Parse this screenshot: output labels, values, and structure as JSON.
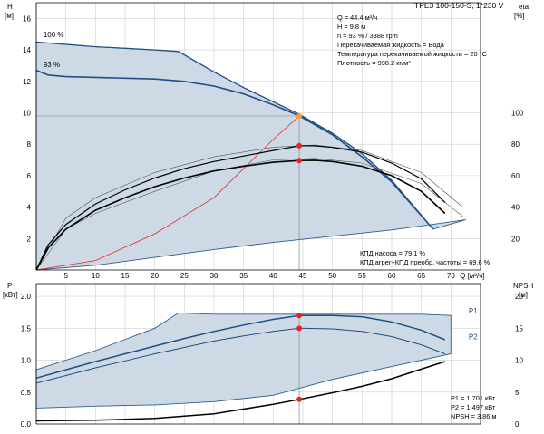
{
  "pump_title": "TPE3 100-150-S, 1*230 V",
  "info": [
    "Q = 44.4 м³/ч",
    "H = 9.8 м",
    "n = 93 % / 3388 rpm",
    "Перекачиваемая жидкость = Вода",
    "Температура перекачиваемой жидкости = 20 °C",
    "Плотность = 998.2 кг/м³"
  ],
  "efficiency_notes": [
    "КПД насоса = 79.1 %",
    "КПД агрег+КПД преобр. частоты = 69.6 %"
  ],
  "power_notes": [
    "P1 = 1.701 кВт",
    "P2 = 1.497 кВт",
    "NPSH = 3.86 м"
  ],
  "colors": {
    "area_fill": "#cddae6",
    "area_edge": "#2d5d8c",
    "head_curve": "#1f4f85",
    "eff_curve": "#000000",
    "system_curve": "#e8241c",
    "duty_point": "#e8241c",
    "duty_point_top": "#f5a31a",
    "grid": "#cfcfcf"
  },
  "chart_data": [
    {
      "type": "line",
      "title": "",
      "xlabel": "Q [м³/ч]",
      "ylabel": "H [м]",
      "y2label": "eta [%]",
      "xlim": [
        0,
        75
      ],
      "ylim": [
        0,
        17
      ],
      "y2lim": [
        0,
        170
      ],
      "x_ticks": [
        5,
        10,
        15,
        20,
        25,
        30,
        35,
        40,
        45,
        50,
        55,
        60,
        65,
        70
      ],
      "y_ticks": [
        2,
        4,
        6,
        8,
        10,
        12,
        14,
        16
      ],
      "y2_ticks": [
        20,
        40,
        60,
        80,
        100
      ],
      "curve_labels": [
        "100 %",
        "93 %"
      ],
      "series": [
        {
          "name": "100 %",
          "x": [
            0,
            5,
            10,
            15,
            20,
            24,
            30,
            35,
            40,
            44.4,
            50,
            55,
            60,
            67
          ],
          "y": [
            14.5,
            14.35,
            14.2,
            14.1,
            14.0,
            13.9,
            12.6,
            11.6,
            10.7,
            9.9,
            8.7,
            7.4,
            5.7,
            2.6
          ]
        },
        {
          "name": "93 %",
          "x": [
            0,
            2,
            5,
            10,
            15,
            20,
            25,
            30,
            35,
            40,
            44.4,
            50,
            55,
            60,
            67
          ],
          "y": [
            12.7,
            12.4,
            12.3,
            12.25,
            12.2,
            12.15,
            12.0,
            11.7,
            11.2,
            10.5,
            9.8,
            8.6,
            7.2,
            5.6,
            2.6
          ]
        },
        {
          "name": "",
          "x": [
            0,
            10,
            20,
            30,
            40,
            44.4
          ],
          "y": [
            0,
            0.6,
            2.3,
            4.6,
            8.3,
            9.8
          ]
        },
        {
          "name": "",
          "x": [
            0,
            2,
            5,
            10,
            15,
            20,
            25,
            30,
            35,
            40,
            44.4,
            47,
            50,
            55,
            60,
            65,
            69
          ],
          "y": [
            0,
            1.6,
            2.9,
            4.2,
            5.1,
            5.85,
            6.45,
            6.9,
            7.25,
            7.6,
            7.9,
            7.9,
            7.8,
            7.5,
            6.8,
            5.8,
            4.3
          ]
        },
        {
          "name": "",
          "x": [
            0,
            2,
            5,
            10,
            15,
            20,
            25,
            30,
            35,
            40,
            44.4,
            47,
            50,
            55,
            60,
            65,
            69
          ],
          "y": [
            0,
            1.4,
            2.6,
            3.8,
            4.6,
            5.3,
            5.85,
            6.3,
            6.6,
            6.85,
            6.96,
            6.98,
            6.9,
            6.6,
            6.0,
            5.0,
            3.6
          ]
        }
      ],
      "duty_points": [
        {
          "x": 44.4,
          "y": 9.8
        },
        {
          "x": 44.4,
          "y": 7.9
        },
        {
          "x": 44.4,
          "y": 6.96
        }
      ]
    },
    {
      "type": "line",
      "title": "",
      "xlabel": "",
      "ylabel": "P [кВт]",
      "y2label": "NPSH [м]",
      "xlim": [
        0,
        75
      ],
      "ylim": [
        0,
        2.2
      ],
      "y2lim": [
        0,
        22
      ],
      "y_ticks": [
        0.0,
        0.5,
        1.0,
        1.5,
        2.0
      ],
      "y2_ticks": [
        0,
        5,
        10,
        15,
        20
      ],
      "curve_labels": [
        "P1",
        "P2"
      ],
      "series": [
        {
          "name": "P1",
          "x": [
            0,
            5,
            10,
            15,
            20,
            25,
            30,
            35,
            40,
            44.4,
            50,
            55,
            60,
            65,
            69
          ],
          "y": [
            0.72,
            0.85,
            0.98,
            1.1,
            1.22,
            1.34,
            1.45,
            1.55,
            1.64,
            1.7,
            1.7,
            1.68,
            1.6,
            1.47,
            1.32
          ]
        },
        {
          "name": "P2",
          "x": [
            0,
            5,
            10,
            15,
            20,
            25,
            30,
            35,
            40,
            44.4,
            50,
            55,
            60,
            65,
            69
          ],
          "y": [
            0.64,
            0.76,
            0.88,
            0.99,
            1.1,
            1.2,
            1.3,
            1.38,
            1.45,
            1.5,
            1.49,
            1.45,
            1.37,
            1.24,
            1.1
          ]
        },
        {
          "name": "NPSH",
          "x": [
            0,
            10,
            20,
            30,
            40,
            44.4,
            50,
            55,
            60,
            65,
            69
          ],
          "y": [
            0.5,
            0.6,
            0.9,
            1.6,
            3.1,
            3.86,
            4.9,
            5.9,
            7.1,
            8.6,
            9.8
          ]
        }
      ],
      "duty_points": [
        {
          "x": 44.4,
          "y": 1.7
        },
        {
          "x": 44.4,
          "y": 1.5
        },
        {
          "x": 44.4,
          "y": 0.386
        }
      ]
    }
  ]
}
